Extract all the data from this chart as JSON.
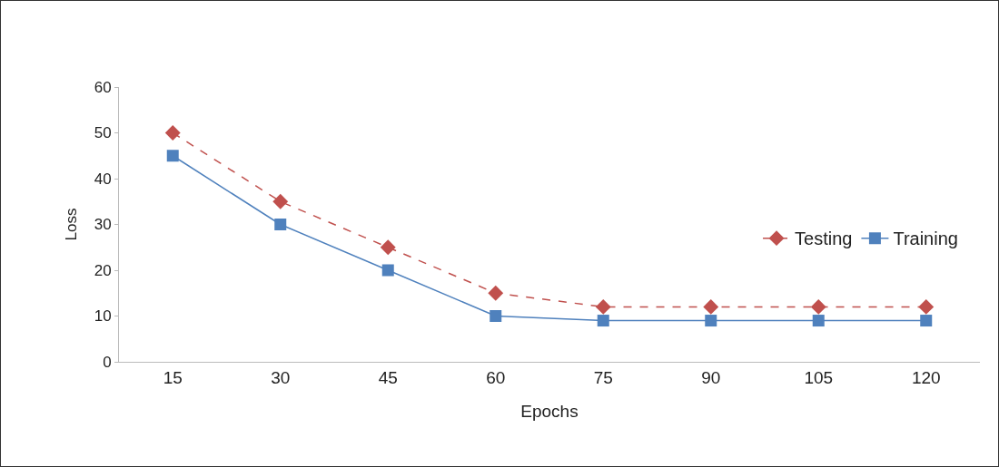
{
  "chart_data": {
    "type": "line",
    "xlabel": "Epochs",
    "ylabel": "Loss",
    "categories": [
      "15",
      "30",
      "45",
      "60",
      "75",
      "90",
      "105",
      "120"
    ],
    "series": [
      {
        "name": "Testing",
        "color": "#c0504d",
        "marker": "diamond",
        "line_style": "dashed",
        "values": [
          50,
          35,
          25,
          15,
          12,
          12,
          12,
          12
        ]
      },
      {
        "name": "Training",
        "color": "#4f81bd",
        "marker": "square",
        "line_style": "solid",
        "values": [
          45,
          30,
          20,
          10,
          9,
          9,
          9,
          9
        ]
      }
    ],
    "ylim": [
      0,
      60
    ],
    "yticks": [
      0,
      10,
      20,
      30,
      40,
      50,
      60
    ],
    "grid": false,
    "legend": "right"
  }
}
